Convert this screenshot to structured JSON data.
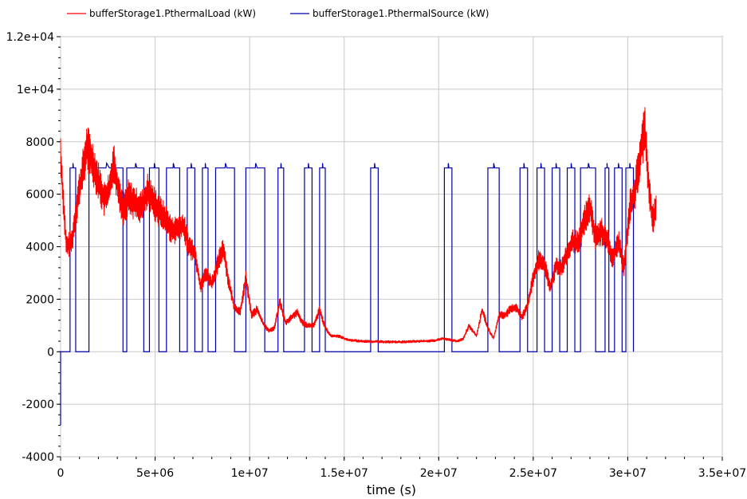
{
  "chart_data": {
    "type": "line",
    "title": "",
    "xlabel": "time (s)",
    "ylabel": "",
    "xlim": [
      0,
      35000000
    ],
    "ylim": [
      -4000,
      12000
    ],
    "x_ticks": [
      0,
      5000000,
      10000000,
      15000000,
      20000000,
      25000000,
      30000000,
      35000000
    ],
    "x_tick_labels": [
      "0",
      "5e+06",
      "1e+07",
      "1.5e+07",
      "2e+07",
      "2.5e+07",
      "3e+07",
      "3.5e+07"
    ],
    "y_ticks": [
      -4000,
      -2000,
      0,
      2000,
      4000,
      6000,
      8000,
      10000,
      12000
    ],
    "y_tick_labels": [
      "-4000",
      "-2000",
      "0",
      "2000",
      "4000",
      "6000",
      "8000",
      "1e+04",
      "1.2e+04"
    ],
    "grid": true,
    "legend_position": "top-left",
    "series": [
      {
        "name": "bufferStorage1.PthermalLoad (kW)",
        "color": "#ff0000",
        "style": "oscillating",
        "x": [
          0,
          300000,
          600000,
          900000,
          1200000,
          1400000,
          1700000,
          2000000,
          2300000,
          2600000,
          2800000,
          3000000,
          3300000,
          3600000,
          4000000,
          4300000,
          4600000,
          5000000,
          5300000,
          5600000,
          5900000,
          6200000,
          6500000,
          6800000,
          7100000,
          7400000,
          7700000,
          8000000,
          8300000,
          8600000,
          8900000,
          9200000,
          9500000,
          9800000,
          10100000,
          10400000,
          10700000,
          11000000,
          11300000,
          11600000,
          11900000,
          12200000,
          12500000,
          12800000,
          13100000,
          13400000,
          13700000,
          14000000,
          14300000,
          14700000,
          15200000,
          16000000,
          17000000,
          18000000,
          19000000,
          19800000,
          20200000,
          20600000,
          21000000,
          21300000,
          21600000,
          22000000,
          22300000,
          22600000,
          22900000,
          23200000,
          23500000,
          23800000,
          24100000,
          24400000,
          24700000,
          25000000,
          25300000,
          25600000,
          25900000,
          26200000,
          26500000,
          26800000,
          27100000,
          27400000,
          27700000,
          28000000,
          28300000,
          28600000,
          28900000,
          29200000,
          29500000,
          29800000,
          30100000,
          30400000,
          30700000,
          30900000,
          31100000,
          31300000,
          31500000
        ],
        "values": [
          7500,
          4000,
          4200,
          5800,
          7000,
          7800,
          7200,
          6500,
          5800,
          6200,
          7300,
          6400,
          5400,
          5900,
          5600,
          5500,
          6100,
          5600,
          5300,
          5000,
          4600,
          4700,
          4800,
          4000,
          3800,
          2500,
          3000,
          2600,
          3300,
          4000,
          2600,
          1700,
          1500,
          2800,
          1400,
          1600,
          1100,
          800,
          900,
          1900,
          1100,
          1300,
          1500,
          1100,
          1000,
          1000,
          1600,
          900,
          600,
          600,
          450,
          400,
          380,
          370,
          400,
          420,
          500,
          450,
          400,
          500,
          1000,
          600,
          1600,
          900,
          500,
          1400,
          1400,
          1600,
          1700,
          1300,
          1800,
          2800,
          3500,
          3300,
          2400,
          3300,
          3200,
          3700,
          4200,
          4100,
          5000,
          5500,
          4300,
          4600,
          4300,
          3500,
          4200,
          3200,
          5500,
          6200,
          7700,
          8500,
          6500,
          5000,
          5400
        ]
      },
      {
        "name": "bufferStorage1.PthermalSource (kW)",
        "color": "#0000aa",
        "style": "step",
        "intervals_on": [
          [
            500000,
            800000
          ],
          [
            1500000,
            3300000
          ],
          [
            3500000,
            4400000
          ],
          [
            4700000,
            5200000
          ],
          [
            5600000,
            6300000
          ],
          [
            6700000,
            7100000
          ],
          [
            7500000,
            7800000
          ],
          [
            8200000,
            9200000
          ],
          [
            9800000,
            10800000
          ],
          [
            11500000,
            11800000
          ],
          [
            12900000,
            13300000
          ],
          [
            13700000,
            14000000
          ],
          [
            16400000,
            16800000
          ],
          [
            20300000,
            20700000
          ],
          [
            22600000,
            23200000
          ],
          [
            24300000,
            24700000
          ],
          [
            25200000,
            25600000
          ],
          [
            26000000,
            26400000
          ],
          [
            26800000,
            27200000
          ],
          [
            27500000,
            28300000
          ],
          [
            28800000,
            29000000
          ],
          [
            29300000,
            29700000
          ],
          [
            29900000,
            30300000
          ]
        ],
        "on_value": 7000,
        "off_value": 0
      }
    ]
  }
}
